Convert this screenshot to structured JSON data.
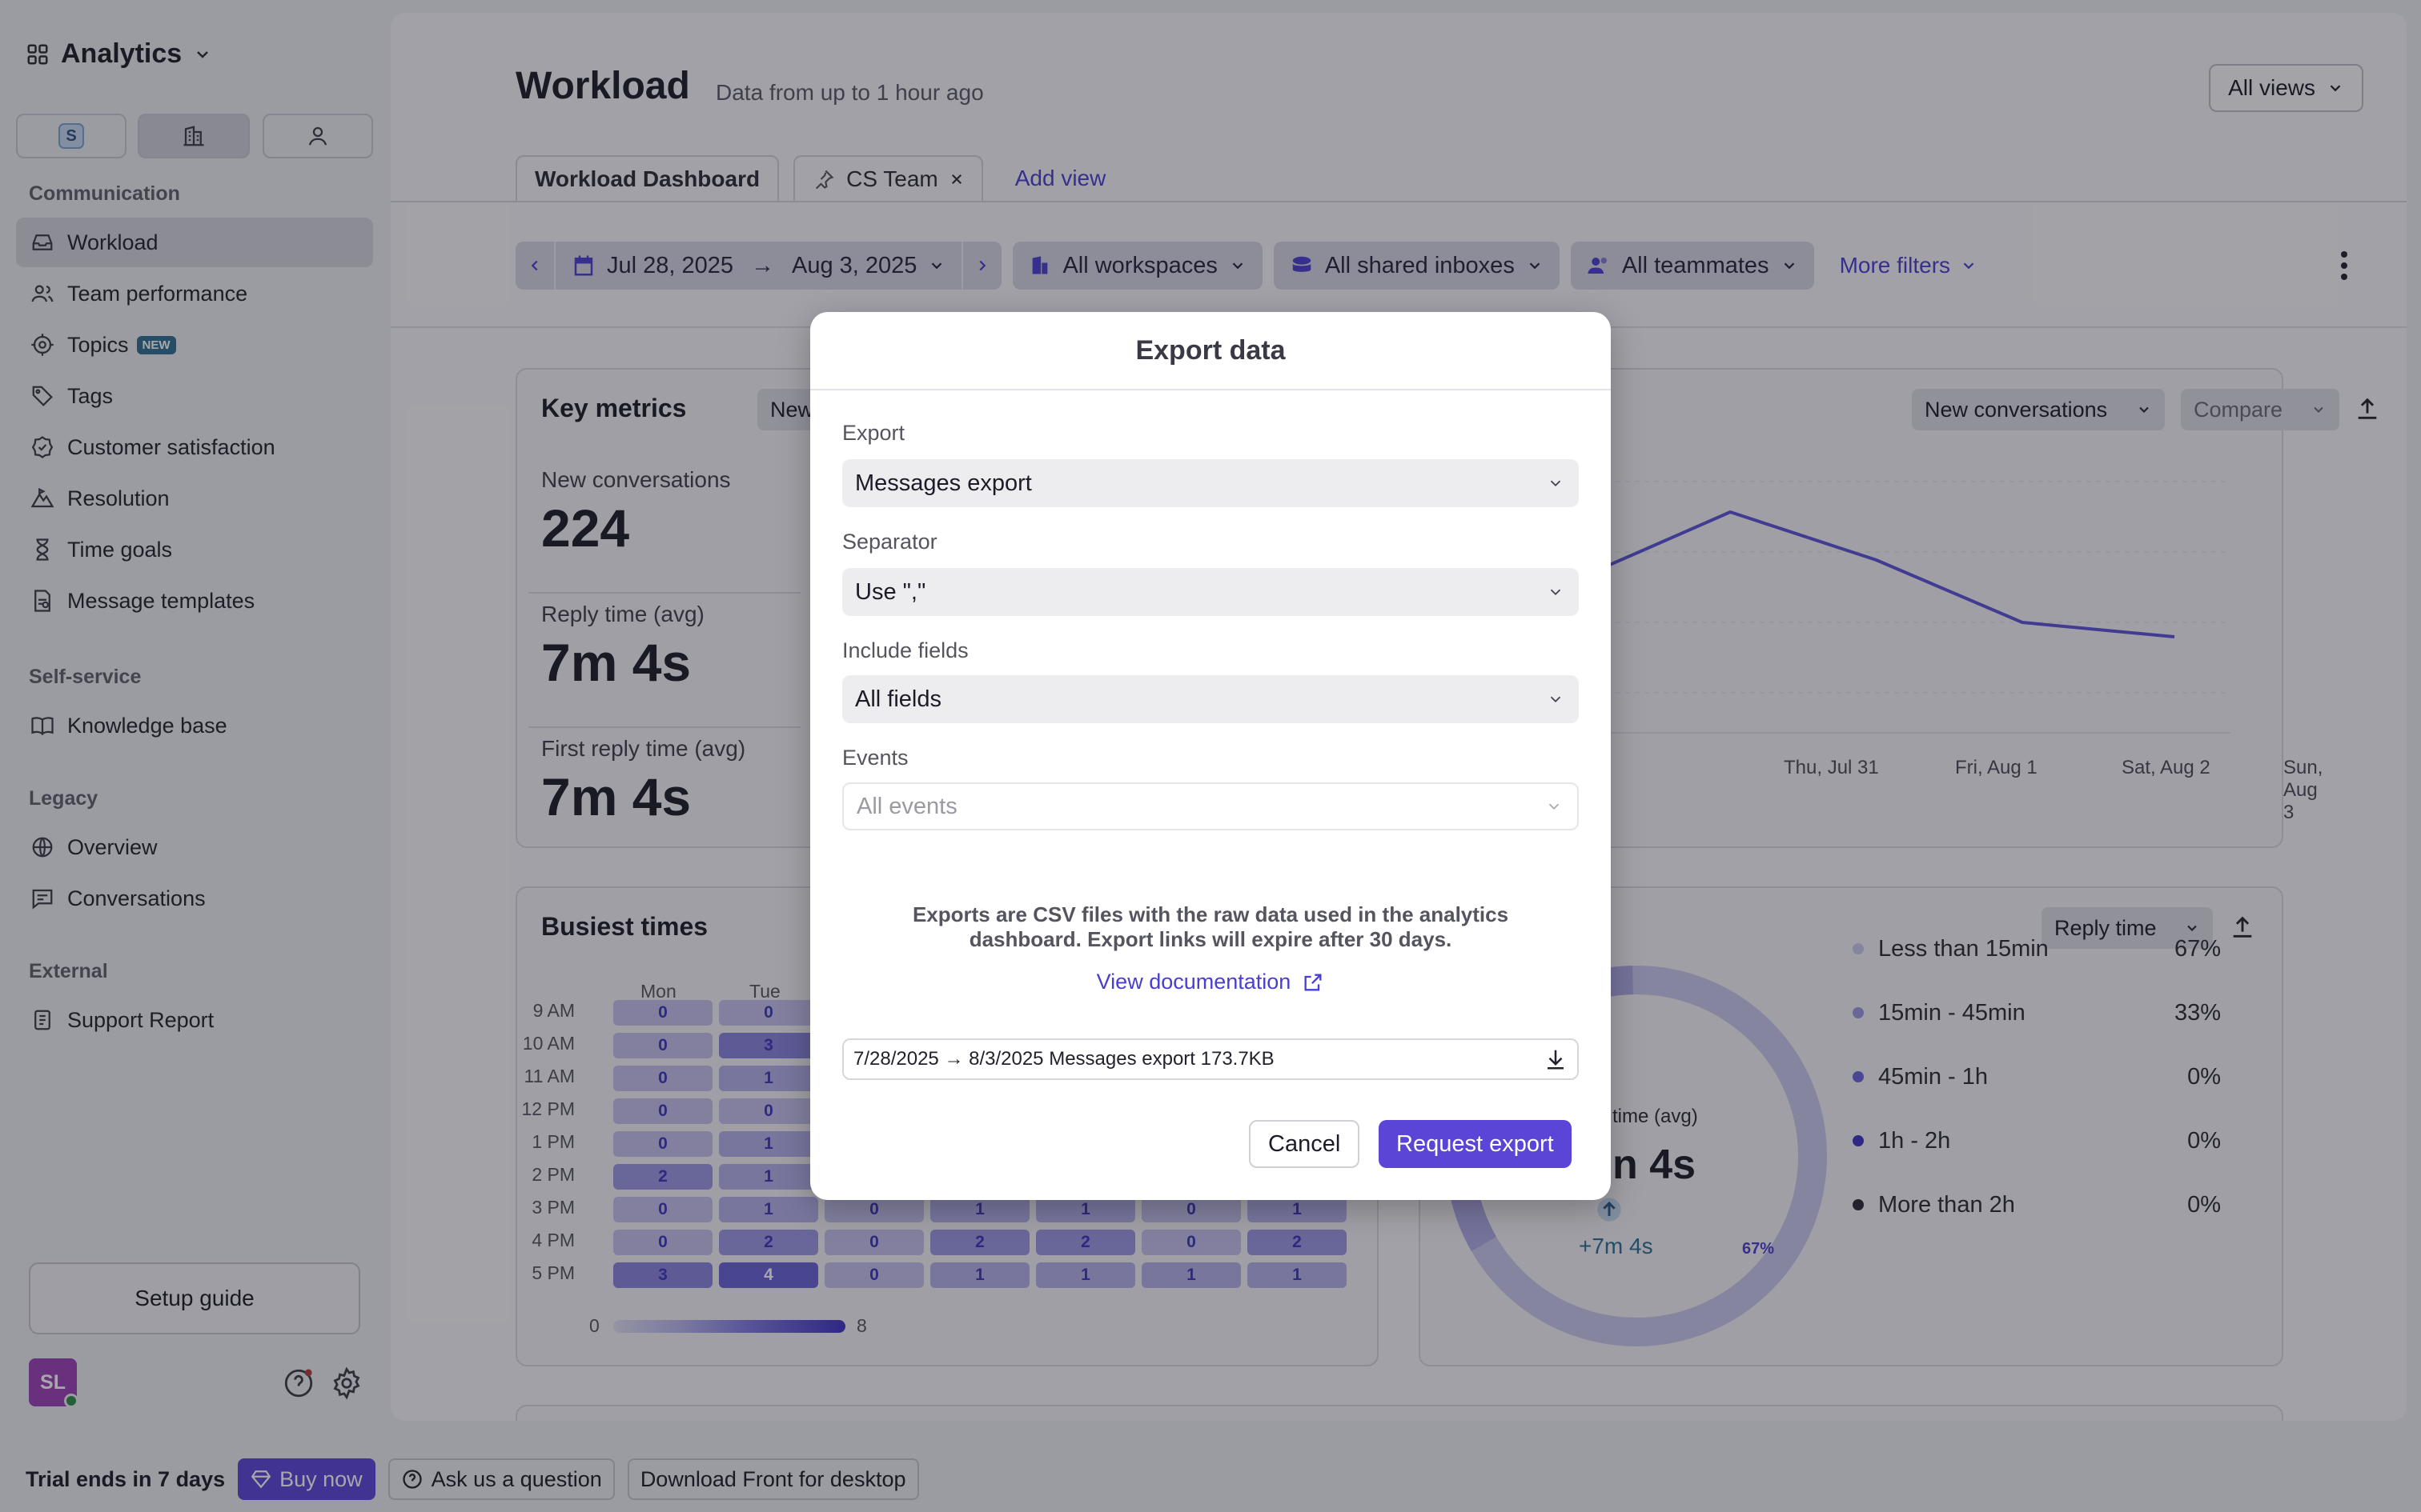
{
  "sidebar": {
    "app_title": "Analytics",
    "switcher_badge": "S",
    "sections": {
      "communication": "Communication",
      "self_service": "Self-service",
      "legacy": "Legacy",
      "external": "External"
    },
    "items": {
      "workload": "Workload",
      "team_performance": "Team performance",
      "topics": "Topics",
      "topics_badge": "NEW",
      "tags": "Tags",
      "customer_satisfaction": "Customer satisfaction",
      "resolution": "Resolution",
      "time_goals": "Time goals",
      "message_templates": "Message templates",
      "knowledge_base": "Knowledge base",
      "overview": "Overview",
      "conversations": "Conversations",
      "support_report": "Support Report"
    },
    "setup_guide": "Setup guide",
    "avatar_initials": "SL"
  },
  "bottombar": {
    "trial": "Trial ends in 7 days",
    "buy_now": "Buy now",
    "ask": "Ask us a question",
    "download": "Download Front for desktop"
  },
  "header": {
    "title": "Workload",
    "subtitle": "Data from up to 1 hour ago",
    "all_views": "All views"
  },
  "tabs": {
    "dashboard": "Workload Dashboard",
    "cs_team": "CS Team",
    "add_view": "Add view"
  },
  "filters": {
    "date_start": "Jul 28, 2025",
    "date_end": "Aug 3, 2025",
    "arrow": "→",
    "workspaces": "All workspaces",
    "shared_inboxes": "All shared inboxes",
    "teammates": "All teammates",
    "more_filters": "More filters"
  },
  "key_metrics": {
    "title": "Key metrics",
    "select_partial": "New",
    "metric_select": "New conversations",
    "compare": "Compare",
    "new_conversations_label": "New conversations",
    "new_conversations_value": "224",
    "reply_time_label": "Reply time (avg)",
    "reply_time_value": "7m 4s",
    "first_reply_label": "First reply time (avg)",
    "first_reply_value": "7m 4s",
    "x_labels": [
      "Thu, Jul 31",
      "Fri, Aug 1",
      "Sat, Aug 2",
      "Sun, Aug 3"
    ],
    "series_visible_tail": [
      0.62,
      0.92,
      0.72,
      0.46,
      0.4
    ]
  },
  "busiest_times": {
    "title": "Busiest times",
    "days": [
      "Mon",
      "Tue"
    ],
    "hours": [
      "9 AM",
      "10 AM",
      "11 AM",
      "12 PM",
      "1 PM",
      "2 PM",
      "3 PM",
      "4 PM",
      "5 PM"
    ],
    "grid": [
      [
        0,
        0,
        null,
        null,
        null,
        null,
        null
      ],
      [
        0,
        3,
        null,
        null,
        null,
        null,
        null
      ],
      [
        0,
        1,
        null,
        null,
        null,
        null,
        null
      ],
      [
        0,
        0,
        null,
        null,
        null,
        null,
        null
      ],
      [
        0,
        1,
        null,
        null,
        null,
        null,
        null
      ],
      [
        2,
        1,
        null,
        null,
        null,
        null,
        null
      ],
      [
        0,
        1,
        0,
        1,
        1,
        0,
        1
      ],
      [
        0,
        2,
        0,
        2,
        2,
        0,
        2
      ],
      [
        3,
        4,
        0,
        1,
        1,
        1,
        1
      ]
    ],
    "scale_min": "0",
    "scale_max": "8"
  },
  "reply_time": {
    "select": "Reply time",
    "center_label_partial": "time (avg)",
    "center_value_partial": "n 4s",
    "change": "+7m 4s",
    "ring_label": "67%",
    "legend": [
      {
        "label": "Less than 15min",
        "pct": "67%",
        "color": "#c9c9ec"
      },
      {
        "label": "15min - 45min",
        "pct": "33%",
        "color": "#9a98e0"
      },
      {
        "label": "45min - 1h",
        "pct": "0%",
        "color": "#6a63d8"
      },
      {
        "label": "1h - 2h",
        "pct": "0%",
        "color": "#3e33c4"
      },
      {
        "label": "More than 2h",
        "pct": "0%",
        "color": "#2a2a34"
      }
    ]
  },
  "modal": {
    "title": "Export data",
    "export_label": "Export",
    "export_value": "Messages export",
    "separator_label": "Separator",
    "separator_value": "Use \",\"",
    "fields_label": "Include fields",
    "fields_value": "All fields",
    "events_label": "Events",
    "events_placeholder": "All events",
    "note": "Exports are CSV files with the raw data used in the analytics dashboard. Export links will expire after 30 days.",
    "doc_link": "View documentation",
    "export_file": "7/28/2025 → 8/3/2025 Messages export 173.7KB",
    "cancel": "Cancel",
    "request": "Request export"
  },
  "colors": {
    "accent": "#5b45d6",
    "link": "#4a3ed0",
    "avatar": "#9b3fb5"
  }
}
